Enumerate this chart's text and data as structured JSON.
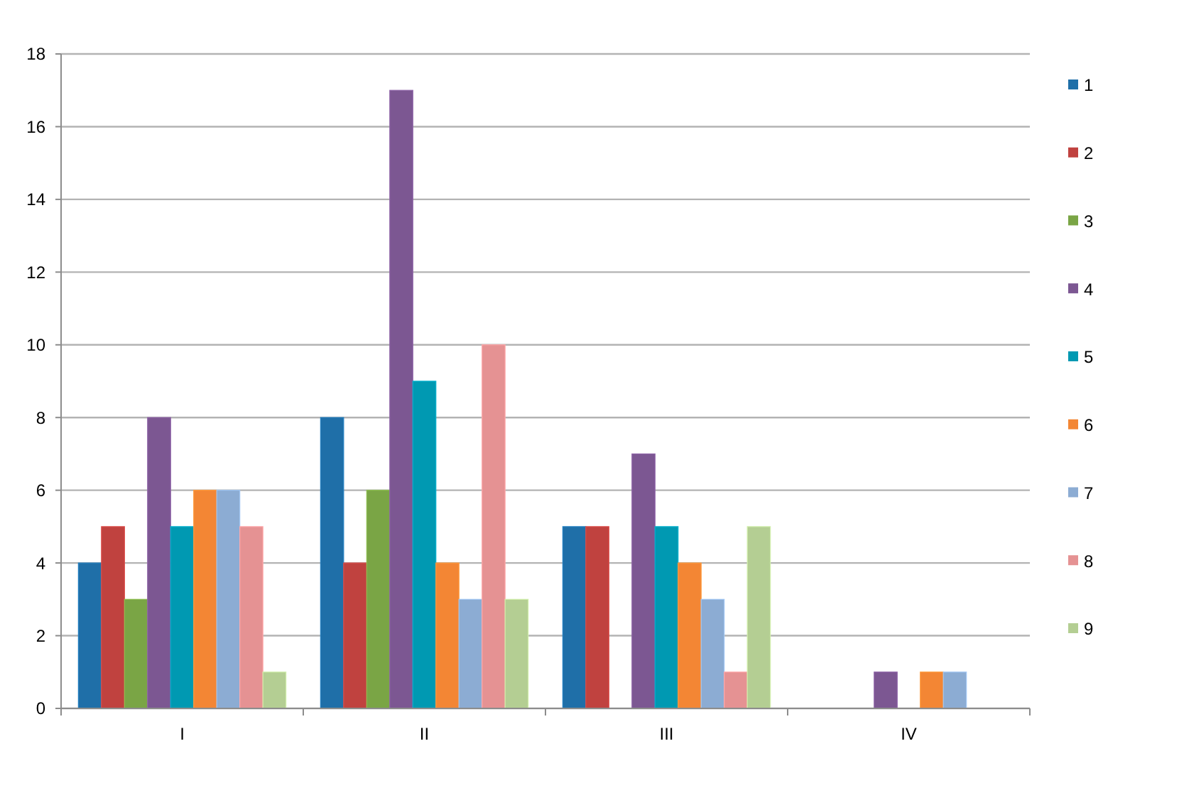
{
  "chart_data": {
    "type": "bar",
    "categories": [
      "I",
      "II",
      "III",
      "IV"
    ],
    "series": [
      {
        "name": "1",
        "color": "#1f6fa8",
        "values": [
          4,
          8,
          5,
          null
        ]
      },
      {
        "name": "2",
        "color": "#c0423f",
        "values": [
          5,
          4,
          5,
          null
        ]
      },
      {
        "name": "3",
        "color": "#7aa545",
        "values": [
          3,
          6,
          null,
          null
        ]
      },
      {
        "name": "4",
        "color": "#7c5792",
        "values": [
          8,
          17,
          7,
          1
        ]
      },
      {
        "name": "5",
        "color": "#0099b2",
        "values": [
          5,
          9,
          5,
          null
        ]
      },
      {
        "name": "6",
        "color": "#f38634",
        "values": [
          6,
          4,
          4,
          1
        ]
      },
      {
        "name": "7",
        "color": "#8cacd3",
        "values": [
          6,
          3,
          3,
          1
        ]
      },
      {
        "name": "8",
        "color": "#e59293",
        "values": [
          5,
          10,
          1,
          null
        ]
      },
      {
        "name": "9",
        "color": "#b4ce93",
        "values": [
          1,
          3,
          5,
          null
        ]
      }
    ],
    "ylim": [
      0,
      18
    ],
    "yticks": [
      0,
      2,
      4,
      6,
      8,
      10,
      12,
      14,
      16,
      18
    ],
    "grid": "y",
    "legend": "right"
  }
}
